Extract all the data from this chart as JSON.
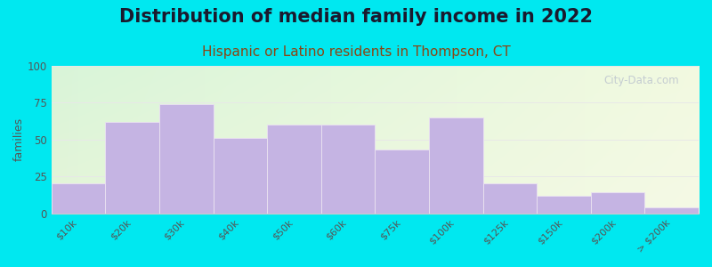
{
  "title": "Distribution of median family income in 2022",
  "subtitle": "Hispanic or Latino residents in Thompson, CT",
  "ylabel": "families",
  "categories": [
    "$10k",
    "$20k",
    "$30k",
    "$40k",
    "$50k",
    "$60k",
    "$75k",
    "$100k",
    "$125k",
    "$150k",
    "$200k",
    "> $200k"
  ],
  "values": [
    20,
    62,
    74,
    51,
    60,
    60,
    43,
    65,
    20,
    12,
    14,
    4
  ],
  "bar_color": "#c5b4e3",
  "bar_edge_color": "#e8e0f0",
  "ylim": [
    0,
    100
  ],
  "yticks": [
    0,
    25,
    50,
    75,
    100
  ],
  "background_outer": "#00e8f0",
  "bg_top_left": "#d4f0d4",
  "bg_bottom_right": "#f0f5e0",
  "title_fontsize": 15,
  "subtitle_fontsize": 11,
  "subtitle_color": "#8b4513",
  "ylabel_fontsize": 9,
  "watermark_text": "City-Data.com",
  "watermark_color": "#c0c8d0",
  "tick_color": "#555555",
  "grid_color": "#e8e8e8",
  "spine_color": "#cccccc"
}
